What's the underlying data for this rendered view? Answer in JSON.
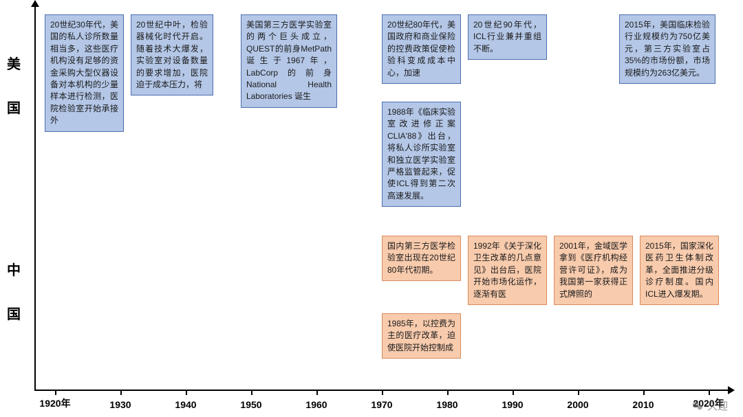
{
  "chart": {
    "type": "timeline-infographic",
    "background_color": "#ffffff",
    "axis_color": "#000000",
    "font_family": "Microsoft YaHei",
    "y_labels": {
      "us": "美国",
      "cn": "中国",
      "fontsize": 20,
      "fontweight": "bold"
    },
    "x_axis": {
      "ticks": [
        "1920年",
        "1930",
        "1940",
        "1950",
        "1960",
        "1970",
        "1980",
        "1990",
        "2000",
        "2010",
        "2020年"
      ],
      "fontsize": 14,
      "fontweight": "bold"
    },
    "box_styles": {
      "us": {
        "fill": "#b4c7e7",
        "border": "#4a6db0"
      },
      "cn": {
        "fill": "#f8cbad",
        "border": "#d88a5a"
      },
      "fontsize": 12,
      "line_height": 1.45
    },
    "boxes_us": [
      {
        "id": "us-1930",
        "text": "20世纪30年代，美国的私人诊所数量相当多，这些医疗机构没有足够的资金采购大型仪器设备对本机构的少量样本进行检测，医院检验室开始承接外"
      },
      {
        "id": "us-mid",
        "text": "20世纪中叶，检验器械化时代开启。随着技术大爆发，实验室对设备数量的要求增加，医院迫于成本压力，将"
      },
      {
        "id": "us-1967",
        "text": "美国第三方医学实验室的两个巨头成立，QUEST的前身MetPath诞生于1967年，LabCorp的前身National Health Laboratories 诞生"
      },
      {
        "id": "us-1980",
        "text": "20世纪80年代，美国政府和商业保险的控费政策促使检验科变成成本中心，加速"
      },
      {
        "id": "us-1988",
        "text": "1988年《临床实验室改进修正案CLIA'88》出台，将私人诊所实验室和独立医学实验室严格监管起来，促使ICL得到第二次高速发展。"
      },
      {
        "id": "us-1990",
        "text": "20世纪90年代，ICL行业兼并重组不断。"
      },
      {
        "id": "us-2015",
        "text": "2015年，美国临床检验行业规模约为750亿美元，第三方实验室占35%的市场份额，市场规模约为263亿美元。"
      }
    ],
    "boxes_cn": [
      {
        "id": "cn-1980",
        "text": "国内第三方医学检验室出现在20世纪80年代初期。"
      },
      {
        "id": "cn-1985",
        "text": "1985年，以控费为主的医疗改革，迫使医院开始控制成"
      },
      {
        "id": "cn-1992",
        "text": "1992年《关于深化卫生改革的几点意见》出台后，医院开始市场化运作，逐渐有医"
      },
      {
        "id": "cn-2001",
        "text": "2001年，金域医学拿到《医疗机构经营许可证》，成为我国第一家获得正式牌照的"
      },
      {
        "id": "cn-2015",
        "text": "2015年，国家深化医药卫生体制改革，全面推进分级诊疗制度。国内ICL进入爆发期。"
      }
    ]
  },
  "watermark": {
    "text": "久迎"
  }
}
